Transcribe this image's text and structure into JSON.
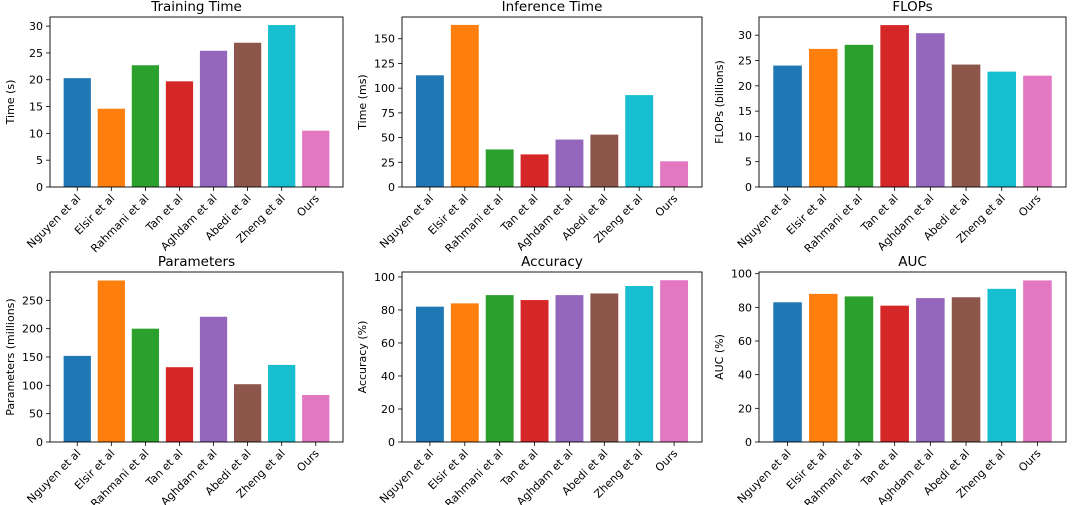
{
  "chart_data": [
    {
      "type": "bar",
      "title": "Training Time",
      "xlabel": "",
      "ylabel": "Time (s)",
      "ylim": [
        0,
        31.7
      ],
      "yticks": [
        0,
        5,
        10,
        15,
        20,
        25,
        30
      ],
      "categories": [
        "Nguyen et al",
        "Elsir et al",
        "Rahmani et al",
        "Tan et al",
        "Aghdam et al",
        "Abedi et al",
        "Zheng et al",
        "Ours"
      ],
      "values": [
        20.3,
        14.6,
        22.7,
        19.7,
        25.4,
        26.9,
        30.2,
        10.5
      ],
      "colors": [
        "#1f77b4",
        "#ff7f0e",
        "#2ca02c",
        "#d62728",
        "#9467bd",
        "#8c564b",
        "#17becf",
        "#e377c2"
      ]
    },
    {
      "type": "bar",
      "title": "Inference Time",
      "xlabel": "",
      "ylabel": "Time (ms)",
      "ylim": [
        0,
        172
      ],
      "yticks": [
        0,
        25,
        50,
        75,
        100,
        125,
        150
      ],
      "categories": [
        "Nguyen et al",
        "Elsir et al",
        "Rahmani et al",
        "Tan et al",
        "Aghdam et al",
        "Abedi et al",
        "Zheng et al",
        "Ours"
      ],
      "values": [
        113,
        164,
        38,
        33,
        48,
        53,
        93,
        26
      ],
      "colors": [
        "#1f77b4",
        "#ff7f0e",
        "#2ca02c",
        "#d62728",
        "#9467bd",
        "#8c564b",
        "#17becf",
        "#e377c2"
      ]
    },
    {
      "type": "bar",
      "title": "FLOPs",
      "xlabel": "",
      "ylabel": "FLOPs (billions)",
      "ylim": [
        0,
        33.6
      ],
      "yticks": [
        0,
        5,
        10,
        15,
        20,
        25,
        30
      ],
      "categories": [
        "Nguyen et al",
        "Elsir et al",
        "Rahmani et al",
        "Tan et al",
        "Aghdam et al",
        "Abedi et al",
        "Zheng et al",
        "Ours"
      ],
      "values": [
        24.0,
        27.3,
        28.1,
        32.0,
        30.4,
        24.2,
        22.8,
        22.0
      ],
      "colors": [
        "#1f77b4",
        "#ff7f0e",
        "#2ca02c",
        "#d62728",
        "#9467bd",
        "#8c564b",
        "#17becf",
        "#e377c2"
      ]
    },
    {
      "type": "bar",
      "title": "Parameters",
      "xlabel": "",
      "ylabel": "Parameters (millions)",
      "ylim": [
        0,
        300
      ],
      "yticks": [
        0,
        50,
        100,
        150,
        200,
        250
      ],
      "categories": [
        "Nguyen et al",
        "Elsir et al",
        "Rahmani et al",
        "Tan et al",
        "Aghdam et al",
        "Abedi et al",
        "Zheng et al",
        "Ours"
      ],
      "values": [
        152,
        285,
        200,
        132,
        221,
        102,
        136,
        83
      ],
      "colors": [
        "#1f77b4",
        "#ff7f0e",
        "#2ca02c",
        "#d62728",
        "#9467bd",
        "#8c564b",
        "#17becf",
        "#e377c2"
      ]
    },
    {
      "type": "bar",
      "title": "Accuracy",
      "xlabel": "",
      "ylabel": "Accuracy (%)",
      "ylim": [
        0,
        103
      ],
      "yticks": [
        0,
        20,
        40,
        60,
        80,
        100
      ],
      "categories": [
        "Nguyen et al",
        "Elsir et al",
        "Rahmani et al",
        "Tan et al",
        "Aghdam et al",
        "Abedi et al",
        "Zheng et al",
        "Ours"
      ],
      "values": [
        82,
        84,
        89,
        86,
        89,
        90,
        94.5,
        98
      ],
      "colors": [
        "#1f77b4",
        "#ff7f0e",
        "#2ca02c",
        "#d62728",
        "#9467bd",
        "#8c564b",
        "#17becf",
        "#e377c2"
      ]
    },
    {
      "type": "bar",
      "title": "AUC",
      "xlabel": "",
      "ylabel": "AUC (%)",
      "ylim": [
        0,
        101
      ],
      "yticks": [
        0,
        20,
        40,
        60,
        80,
        100
      ],
      "categories": [
        "Nguyen et al",
        "Elsir et al",
        "Rahmani et al",
        "Tan et al",
        "Aghdam et al",
        "Abedi et al",
        "Zheng et al",
        "Ours"
      ],
      "values": [
        83,
        88,
        86.5,
        81,
        85.5,
        86,
        91,
        96
      ],
      "colors": [
        "#1f77b4",
        "#ff7f0e",
        "#2ca02c",
        "#d62728",
        "#9467bd",
        "#8c564b",
        "#17becf",
        "#e377c2"
      ]
    }
  ]
}
